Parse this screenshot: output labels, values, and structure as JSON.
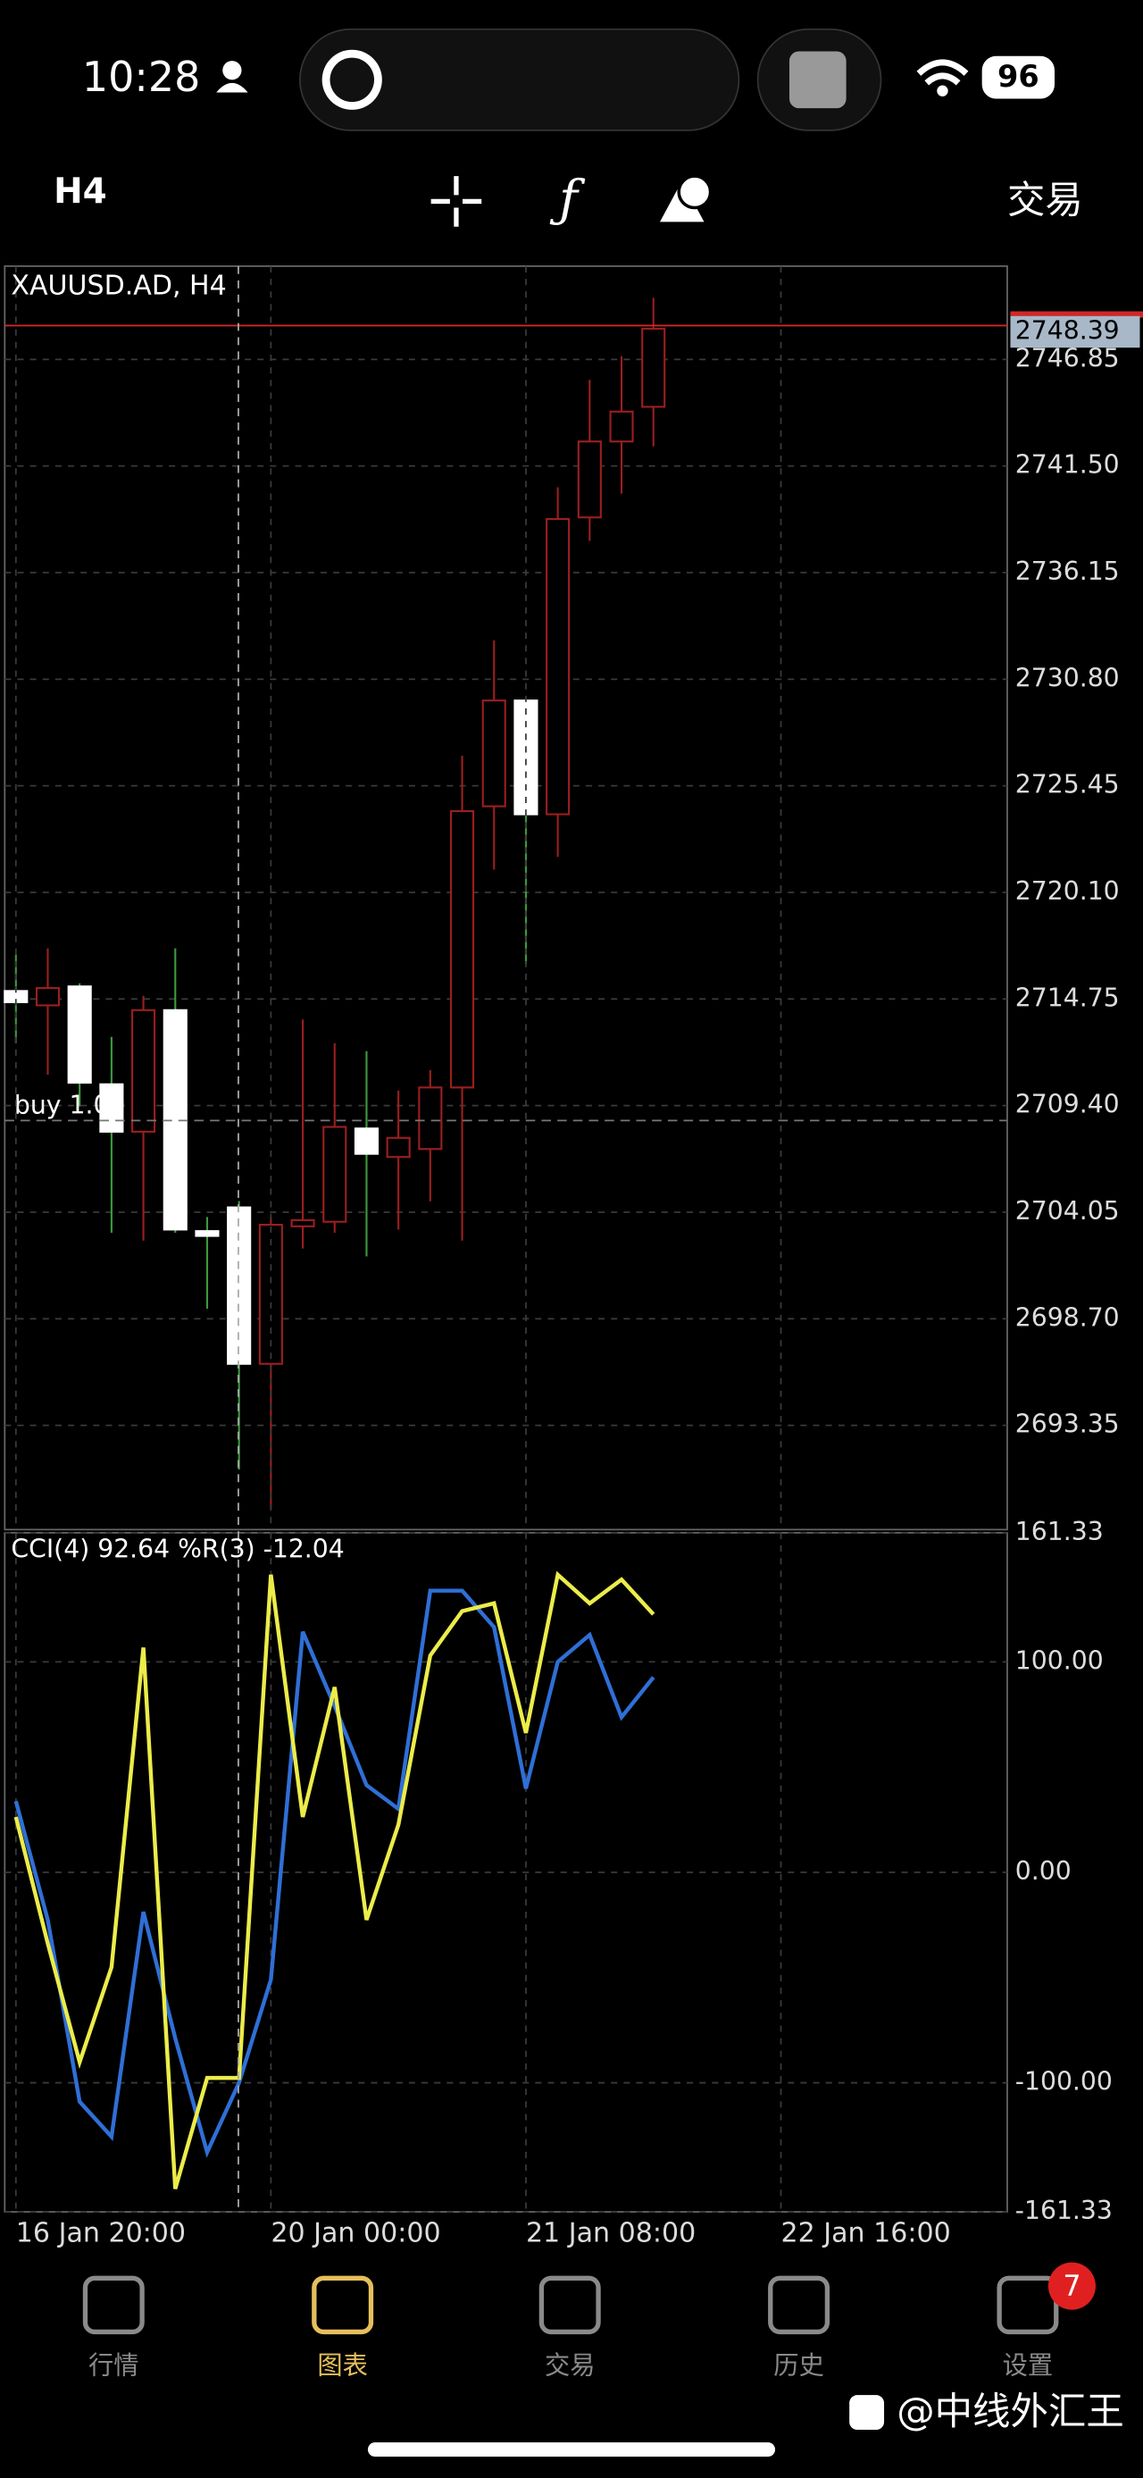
{
  "status_bar": {
    "time": "10:28",
    "battery": "96"
  },
  "toolbar": {
    "timeframe": "H4",
    "trade": "交易"
  },
  "chart_data": [
    {
      "type": "candlestick",
      "title": "XAUUSD.AD, H4",
      "open": [
        2715.15,
        2714.43,
        2715.38,
        2710.47,
        2708.09,
        2714.19,
        2703.1,
        2704.29,
        2696.44,
        2703.34,
        2703.57,
        2708.25,
        2706.82,
        2707.22,
        2710.31,
        2724.42,
        2729.73,
        2724.02,
        2738.92,
        2742.73,
        2744.47
      ],
      "high": [
        2716.97,
        2717.29,
        2715.54,
        2712.85,
        2714.91,
        2717.29,
        2703.81,
        2704.61,
        2703.81,
        2713.72,
        2712.53,
        2712.13,
        2710.15,
        2711.18,
        2726.96,
        2732.74,
        2729.73,
        2740.43,
        2745.82,
        2747.01,
        2749.94
      ],
      "low": [
        2712.53,
        2710.95,
        2709.36,
        2703.02,
        2702.62,
        2703.02,
        2699.21,
        2691.13,
        2689.15,
        2702.23,
        2703.02,
        2701.83,
        2703.18,
        2704.6,
        2702.62,
        2721.25,
        2716.49,
        2721.88,
        2737.74,
        2740.11,
        2742.49
      ],
      "close": [
        2714.59,
        2715.3,
        2710.55,
        2708.09,
        2714.19,
        2703.18,
        2702.86,
        2696.44,
        2703.42,
        2703.65,
        2708.33,
        2706.98,
        2707.78,
        2710.31,
        2724.18,
        2729.73,
        2724.02,
        2738.84,
        2742.73,
        2744.23,
        2748.39
      ],
      "up_color": "#9a1f1f",
      "down_color": "#ffffff",
      "down_wick_color": "#3c9a3c",
      "price_line_color": "#d02828",
      "xlim": [
        -0.35,
        31.1
      ],
      "ylim": [
        2688.12,
        2751.53
      ],
      "yticks": [
        2746.85,
        {
          "value": 2741.5,
          "label": "2741.50"
        },
        2736.15,
        {
          "value": 2730.8,
          "label": "2730.80"
        },
        2725.45,
        {
          "value": 2720.1,
          "label": "2720.10"
        },
        2714.75,
        {
          "value": 2709.4,
          "label": "2709.40"
        },
        2704.05,
        {
          "value": 2698.7,
          "label": "2698.70"
        },
        2693.35
      ],
      "grid": true,
      "annotation": {
        "text": "buy 1.00",
        "value": 2708.65
      }
    },
    {
      "type": "line",
      "title": "CCI(4) 92.64 %R(3) -12.04",
      "series": [
        {
          "color": "#2f6fd6",
          "values": [
            33.8,
            -22.6,
            -109,
            -125.6,
            -18.8,
            -78.9,
            -133,
            -100,
            -51,
            114.3,
            79,
            41.4,
            30.1,
            133.8,
            133.8,
            116.5,
            39.8,
            100,
            112.8,
            73.7,
            92.64
          ]
        },
        {
          "color": "#ecec4a",
          "values": [
            26.3,
            -33.8,
            -90.2,
            -45.1,
            106.8,
            -150.4,
            -97.7,
            -97.7,
            141.4,
            26.3,
            88,
            -22.6,
            22.6,
            103,
            124.1,
            127.8,
            66.2,
            141.4,
            127.8,
            139.1,
            122.6
          ]
        }
      ],
      "xlim": [
        -0.35,
        31.1
      ],
      "ylim": [
        -161.33,
        161.33
      ],
      "yticks": [
        161.33,
        {
          "value": 100,
          "label": "100.00"
        },
        {
          "value": 0,
          "label": "0.00"
        },
        {
          "value": -100,
          "label": "-100.00"
        },
        -161.33
      ],
      "xticks": [
        {
          "value": 0,
          "label": "16 Jan 20:00"
        },
        {
          "value": 8,
          "label": "20 Jan 00:00"
        },
        {
          "value": 16,
          "label": "21 Jan 08:00"
        },
        {
          "value": 24,
          "label": "22 Jan 16:00"
        }
      ],
      "grid": true
    }
  ],
  "tabs": [
    "行情",
    "图表",
    "交易",
    "历史",
    "设置"
  ],
  "active_tab": 1,
  "badge": "7",
  "watermark": "@中线外汇王"
}
